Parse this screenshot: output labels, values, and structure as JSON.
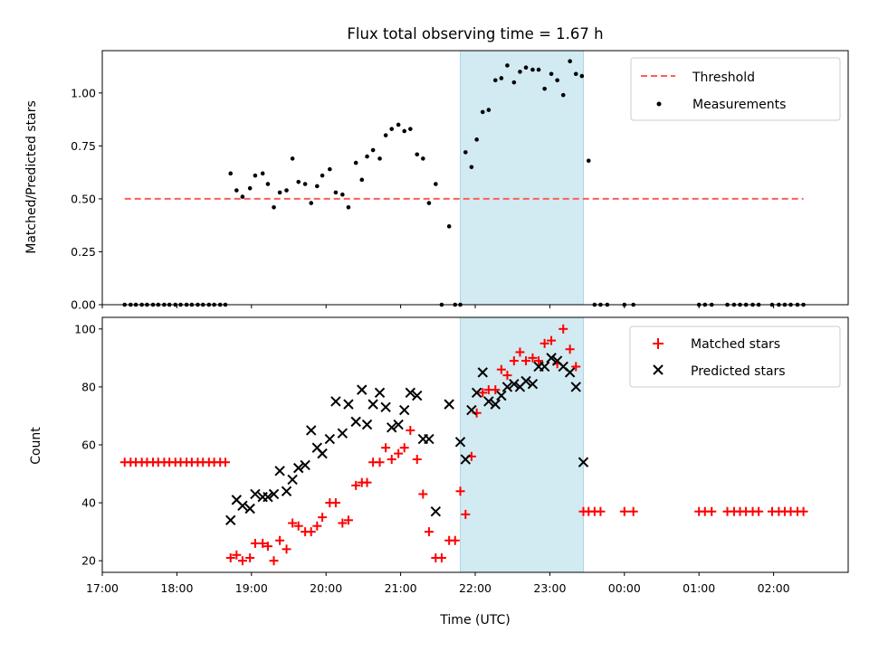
{
  "chart_data": [
    {
      "type": "scatter",
      "title": "Flux total observing time = 1.67 h",
      "ylabel": "Matched/Predicted stars",
      "xlabel": "",
      "ylim": [
        0,
        1.2
      ],
      "yticks": [
        "0.00",
        "0.25",
        "0.50",
        "0.75",
        "1.00"
      ],
      "legend_placement": "top-right",
      "highlight_span": {
        "start": 21.8,
        "end": 23.45,
        "color": "#add8e6"
      },
      "threshold": {
        "name": "Threshold",
        "value": 0.5,
        "x_start": 17.3,
        "x_end": 26.4,
        "color": "#ff5c5c"
      },
      "series": [
        {
          "name": "Measurements",
          "color": "#000000",
          "points": [
            [
              17.3,
              0
            ],
            [
              17.38,
              0
            ],
            [
              17.45,
              0
            ],
            [
              17.53,
              0
            ],
            [
              17.6,
              0
            ],
            [
              17.68,
              0
            ],
            [
              17.75,
              0
            ],
            [
              17.83,
              0
            ],
            [
              17.9,
              0
            ],
            [
              17.98,
              0
            ],
            [
              18.05,
              0
            ],
            [
              18.13,
              0
            ],
            [
              18.2,
              0
            ],
            [
              18.28,
              0
            ],
            [
              18.35,
              0
            ],
            [
              18.43,
              0
            ],
            [
              18.5,
              0
            ],
            [
              18.58,
              0
            ],
            [
              18.65,
              0
            ],
            [
              18.72,
              0.62
            ],
            [
              18.8,
              0.54
            ],
            [
              18.88,
              0.51
            ],
            [
              18.98,
              0.55
            ],
            [
              19.05,
              0.61
            ],
            [
              19.15,
              0.62
            ],
            [
              19.22,
              0.57
            ],
            [
              19.3,
              0.46
            ],
            [
              19.38,
              0.53
            ],
            [
              19.47,
              0.54
            ],
            [
              19.55,
              0.69
            ],
            [
              19.63,
              0.58
            ],
            [
              19.72,
              0.57
            ],
            [
              19.8,
              0.48
            ],
            [
              19.88,
              0.56
            ],
            [
              19.95,
              0.61
            ],
            [
              20.05,
              0.64
            ],
            [
              20.13,
              0.53
            ],
            [
              20.22,
              0.52
            ],
            [
              20.3,
              0.46
            ],
            [
              20.4,
              0.67
            ],
            [
              20.48,
              0.59
            ],
            [
              20.55,
              0.7
            ],
            [
              20.63,
              0.73
            ],
            [
              20.72,
              0.69
            ],
            [
              20.8,
              0.8
            ],
            [
              20.88,
              0.83
            ],
            [
              20.97,
              0.85
            ],
            [
              21.05,
              0.82
            ],
            [
              21.13,
              0.83
            ],
            [
              21.22,
              0.71
            ],
            [
              21.3,
              0.69
            ],
            [
              21.38,
              0.48
            ],
            [
              21.47,
              0.57
            ],
            [
              21.55,
              0
            ],
            [
              21.65,
              0.37
            ],
            [
              21.73,
              0
            ],
            [
              21.8,
              0
            ],
            [
              21.87,
              0.72
            ],
            [
              21.95,
              0.65
            ],
            [
              22.02,
              0.78
            ],
            [
              22.1,
              0.91
            ],
            [
              22.18,
              0.92
            ],
            [
              22.27,
              1.06
            ],
            [
              22.35,
              1.07
            ],
            [
              22.43,
              1.13
            ],
            [
              22.52,
              1.05
            ],
            [
              22.6,
              1.1
            ],
            [
              22.68,
              1.12
            ],
            [
              22.77,
              1.11
            ],
            [
              22.85,
              1.11
            ],
            [
              22.93,
              1.02
            ],
            [
              23.02,
              1.09
            ],
            [
              23.1,
              1.06
            ],
            [
              23.18,
              0.99
            ],
            [
              23.27,
              1.15
            ],
            [
              23.35,
              1.09
            ],
            [
              23.43,
              1.08
            ],
            [
              23.52,
              0.68
            ],
            [
              23.6,
              0
            ],
            [
              23.68,
              0
            ],
            [
              23.77,
              0
            ],
            [
              24.0,
              0
            ],
            [
              24.12,
              0
            ],
            [
              25.0,
              0
            ],
            [
              25.08,
              0
            ],
            [
              25.17,
              0
            ],
            [
              25.38,
              0
            ],
            [
              25.47,
              0
            ],
            [
              25.55,
              0
            ],
            [
              25.63,
              0
            ],
            [
              25.72,
              0
            ],
            [
              25.8,
              0
            ],
            [
              25.98,
              0
            ],
            [
              26.07,
              0
            ],
            [
              26.15,
              0
            ],
            [
              26.23,
              0
            ],
            [
              26.32,
              0
            ],
            [
              26.4,
              0
            ]
          ]
        }
      ]
    },
    {
      "type": "scatter",
      "title": "",
      "xlabel": "Time (UTC)",
      "ylabel": "Count",
      "ylim": [
        16,
        104
      ],
      "xlim": [
        17.0,
        27.0
      ],
      "yticks": [
        "20",
        "40",
        "60",
        "80",
        "100"
      ],
      "xticks": [
        "17:00",
        "18:00",
        "19:00",
        "20:00",
        "21:00",
        "22:00",
        "23:00",
        "00:00",
        "01:00",
        "02:00"
      ],
      "legend_placement": "top-right",
      "highlight_span": {
        "start": 21.8,
        "end": 23.45,
        "color": "#add8e6"
      },
      "series": [
        {
          "name": "Matched stars",
          "marker": "+",
          "color": "#ff0000",
          "points": [
            [
              17.3,
              54
            ],
            [
              17.38,
              54
            ],
            [
              17.45,
              54
            ],
            [
              17.53,
              54
            ],
            [
              17.6,
              54
            ],
            [
              17.68,
              54
            ],
            [
              17.75,
              54
            ],
            [
              17.83,
              54
            ],
            [
              17.9,
              54
            ],
            [
              17.98,
              54
            ],
            [
              18.05,
              54
            ],
            [
              18.13,
              54
            ],
            [
              18.2,
              54
            ],
            [
              18.28,
              54
            ],
            [
              18.35,
              54
            ],
            [
              18.43,
              54
            ],
            [
              18.5,
              54
            ],
            [
              18.58,
              54
            ],
            [
              18.65,
              54
            ],
            [
              18.72,
              21
            ],
            [
              18.8,
              22
            ],
            [
              18.88,
              20
            ],
            [
              18.98,
              21
            ],
            [
              19.05,
              26
            ],
            [
              19.15,
              26
            ],
            [
              19.22,
              25
            ],
            [
              19.3,
              20
            ],
            [
              19.38,
              27
            ],
            [
              19.47,
              24
            ],
            [
              19.55,
              33
            ],
            [
              19.63,
              32
            ],
            [
              19.72,
              30
            ],
            [
              19.8,
              30
            ],
            [
              19.88,
              32
            ],
            [
              19.95,
              35
            ],
            [
              20.05,
              40
            ],
            [
              20.13,
              40
            ],
            [
              20.22,
              33
            ],
            [
              20.3,
              34
            ],
            [
              20.4,
              46
            ],
            [
              20.48,
              47
            ],
            [
              20.55,
              47
            ],
            [
              20.63,
              54
            ],
            [
              20.72,
              54
            ],
            [
              20.8,
              59
            ],
            [
              20.88,
              55
            ],
            [
              20.97,
              57
            ],
            [
              21.05,
              59
            ],
            [
              21.13,
              65
            ],
            [
              21.22,
              55
            ],
            [
              21.3,
              43
            ],
            [
              21.38,
              30
            ],
            [
              21.47,
              21
            ],
            [
              21.55,
              21
            ],
            [
              21.65,
              27
            ],
            [
              21.73,
              27
            ],
            [
              21.8,
              44
            ],
            [
              21.87,
              36
            ],
            [
              21.95,
              56
            ],
            [
              22.02,
              71
            ],
            [
              22.1,
              78
            ],
            [
              22.18,
              79
            ],
            [
              22.27,
              79
            ],
            [
              22.35,
              86
            ],
            [
              22.43,
              84
            ],
            [
              22.52,
              89
            ],
            [
              22.6,
              92
            ],
            [
              22.68,
              89
            ],
            [
              22.77,
              90
            ],
            [
              22.85,
              89
            ],
            [
              22.93,
              95
            ],
            [
              23.02,
              96
            ],
            [
              23.1,
              88
            ],
            [
              23.18,
              100
            ],
            [
              23.27,
              93
            ],
            [
              23.35,
              87
            ],
            [
              23.45,
              37
            ],
            [
              23.52,
              37
            ],
            [
              23.6,
              37
            ],
            [
              23.68,
              37
            ],
            [
              24.0,
              37
            ],
            [
              24.12,
              37
            ],
            [
              25.0,
              37
            ],
            [
              25.08,
              37
            ],
            [
              25.17,
              37
            ],
            [
              25.38,
              37
            ],
            [
              25.47,
              37
            ],
            [
              25.55,
              37
            ],
            [
              25.63,
              37
            ],
            [
              25.72,
              37
            ],
            [
              25.8,
              37
            ],
            [
              25.98,
              37
            ],
            [
              26.07,
              37
            ],
            [
              26.15,
              37
            ],
            [
              26.23,
              37
            ],
            [
              26.32,
              37
            ],
            [
              26.4,
              37
            ]
          ]
        },
        {
          "name": "Predicted stars",
          "marker": "x",
          "color": "#000000",
          "points": [
            [
              18.72,
              34
            ],
            [
              18.8,
              41
            ],
            [
              18.88,
              39
            ],
            [
              18.98,
              38
            ],
            [
              19.05,
              43
            ],
            [
              19.15,
              42
            ],
            [
              19.22,
              42
            ],
            [
              19.3,
              43
            ],
            [
              19.38,
              51
            ],
            [
              19.47,
              44
            ],
            [
              19.55,
              48
            ],
            [
              19.63,
              52
            ],
            [
              19.72,
              53
            ],
            [
              19.8,
              65
            ],
            [
              19.88,
              59
            ],
            [
              19.95,
              57
            ],
            [
              20.05,
              62
            ],
            [
              20.13,
              75
            ],
            [
              20.22,
              64
            ],
            [
              20.3,
              74
            ],
            [
              20.4,
              68
            ],
            [
              20.48,
              79
            ],
            [
              20.55,
              67
            ],
            [
              20.63,
              74
            ],
            [
              20.72,
              78
            ],
            [
              20.8,
              73
            ],
            [
              20.88,
              66
            ],
            [
              20.97,
              67
            ],
            [
              21.05,
              72
            ],
            [
              21.13,
              78
            ],
            [
              21.22,
              77
            ],
            [
              21.3,
              62
            ],
            [
              21.38,
              62
            ],
            [
              21.47,
              37
            ],
            [
              21.65,
              74
            ],
            [
              21.8,
              61
            ],
            [
              21.87,
              55
            ],
            [
              21.95,
              72
            ],
            [
              22.02,
              78
            ],
            [
              22.1,
              85
            ],
            [
              22.18,
              75
            ],
            [
              22.27,
              74
            ],
            [
              22.35,
              77
            ],
            [
              22.43,
              80
            ],
            [
              22.52,
              81
            ],
            [
              22.6,
              80
            ],
            [
              22.68,
              82
            ],
            [
              22.77,
              81
            ],
            [
              22.85,
              87
            ],
            [
              22.93,
              87
            ],
            [
              23.02,
              90
            ],
            [
              23.1,
              89
            ],
            [
              23.18,
              87
            ],
            [
              23.27,
              85
            ],
            [
              23.35,
              80
            ],
            [
              23.45,
              54
            ]
          ]
        }
      ]
    }
  ]
}
